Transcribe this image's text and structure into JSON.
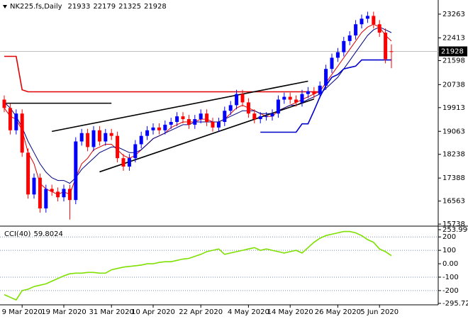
{
  "chart_data": {
    "type": "candlestick",
    "title": "NK225.fs,Daily",
    "open": [
      20200,
      19900,
      19100,
      19700,
      18300,
      16800,
      17400,
      16300,
      17000,
      16900,
      16700,
      17000,
      16600,
      18700,
      19000,
      18500,
      19100,
      18700,
      19000,
      18900,
      18100,
      17800,
      18100,
      18600,
      18900,
      19100,
      19200,
      19100,
      19300,
      19400,
      19600,
      19500,
      19300,
      19500,
      19700,
      19400,
      19200,
      19400,
      19800,
      20000,
      20400,
      20100,
      19700,
      19500,
      19600,
      19600,
      19700,
      20200,
      20300,
      20200,
      20100,
      20400,
      20500,
      20400,
      20700,
      21300,
      21700,
      21900,
      22300,
      22500,
      22900,
      23100,
      23200,
      22900,
      22600,
      21933
    ],
    "high": [
      20350,
      20050,
      19850,
      19850,
      18450,
      17550,
      17550,
      17150,
      17150,
      17050,
      17150,
      17150,
      18850,
      19150,
      19150,
      19250,
      19250,
      19150,
      19150,
      19050,
      18250,
      18250,
      18750,
      19050,
      19250,
      19350,
      19350,
      19450,
      19550,
      19750,
      19750,
      19650,
      19650,
      19850,
      19850,
      19550,
      19550,
      19950,
      20150,
      20550,
      20550,
      20250,
      19850,
      19750,
      19750,
      19850,
      20350,
      20450,
      20450,
      20350,
      20550,
      20650,
      20650,
      20850,
      21450,
      21850,
      22050,
      22450,
      22650,
      23050,
      23250,
      23350,
      23350,
      23050,
      22750,
      22179
    ],
    "low": [
      19750,
      18950,
      18950,
      18150,
      16650,
      16650,
      16150,
      16150,
      16750,
      16550,
      16550,
      15900,
      16450,
      18550,
      18350,
      18350,
      18550,
      18550,
      18750,
      17950,
      17650,
      17650,
      17950,
      18450,
      18750,
      18950,
      18950,
      18950,
      19150,
      19250,
      19350,
      19150,
      19150,
      19350,
      19250,
      19050,
      19050,
      19250,
      19650,
      19850,
      19950,
      19550,
      19350,
      19350,
      19450,
      19450,
      19550,
      20050,
      20050,
      19950,
      19950,
      20250,
      20250,
      20250,
      20550,
      21150,
      21550,
      21750,
      22150,
      22350,
      22750,
      22950,
      22750,
      22450,
      21500,
      21325
    ],
    "close": [
      19900,
      19100,
      19700,
      18300,
      16800,
      17400,
      16300,
      17000,
      16900,
      16700,
      17000,
      16600,
      18700,
      19000,
      18500,
      19100,
      18700,
      19000,
      18900,
      18100,
      17800,
      18100,
      18600,
      18900,
      19100,
      19200,
      19100,
      19300,
      19400,
      19600,
      19500,
      19300,
      19500,
      19700,
      19400,
      19200,
      19400,
      19800,
      20000,
      20400,
      20100,
      19700,
      19500,
      19600,
      19600,
      19700,
      20200,
      20300,
      20200,
      20100,
      20400,
      20500,
      20400,
      20700,
      21300,
      21700,
      21900,
      22300,
      22500,
      22900,
      23100,
      23200,
      22900,
      22600,
      21650,
      21928
    ],
    "up_color": "#0000ff",
    "down_color": "#ff0000",
    "series": [
      {
        "color": "#dd0000",
        "values": [
          19900,
          19600,
          19500,
          19100,
          18300,
          17900,
          17200,
          17000,
          16900,
          16800,
          16900,
          16800,
          17400,
          17900,
          18100,
          18400,
          18500,
          18600,
          18600,
          18400,
          18200,
          18100,
          18200,
          18400,
          18600,
          18800,
          18900,
          19000,
          19200,
          19300,
          19400,
          19400,
          19400,
          19500,
          19500,
          19400,
          19400,
          19500,
          19700,
          19900,
          20000,
          19900,
          19800,
          19700,
          19600,
          19600,
          19800,
          19900,
          20000,
          20100,
          20200,
          20300,
          20400,
          20500,
          20800,
          21100,
          21400,
          21700,
          22000,
          22300,
          22600,
          22800,
          22900,
          22800,
          22500,
          22300
        ]
      },
      {
        "color": "#000080",
        "values": [
          20100,
          19900,
          19600,
          19200,
          18700,
          18300,
          17900,
          17600,
          17400,
          17300,
          17300,
          17200,
          17400,
          17700,
          17900,
          18100,
          18300,
          18400,
          18500,
          18500,
          18400,
          18300,
          18300,
          18400,
          18600,
          18800,
          18900,
          19000,
          19100,
          19200,
          19300,
          19300,
          19400,
          19400,
          19400,
          19400,
          19400,
          19500,
          19600,
          19700,
          19800,
          19800,
          19800,
          19700,
          19700,
          19700,
          19800,
          19900,
          20000,
          20000,
          20100,
          20200,
          20300,
          20400,
          20600,
          20800,
          21000,
          21300,
          21600,
          21900,
          22200,
          22500,
          22700,
          22800,
          22700,
          22600
        ]
      },
      {
        "color": "#e00000",
        "values": [
          21750,
          21750,
          21750,
          20550,
          20480,
          20480,
          20480,
          20480,
          20480,
          20480,
          20480,
          20480,
          20480,
          20480,
          20480,
          20480,
          20480,
          20480,
          20480,
          20480,
          20480,
          20480,
          20480,
          20480,
          20480,
          20480,
          20480,
          20480,
          20480,
          20480,
          20480,
          20480,
          20480,
          20480,
          20480,
          20480,
          20480,
          20480,
          20480,
          20480,
          20480,
          20480,
          20480,
          20480,
          20480,
          20480,
          20480,
          20480,
          20480,
          20480,
          20480,
          20480,
          20480,
          20480,
          null,
          null,
          null,
          null,
          null,
          null,
          null,
          null,
          null,
          null,
          null,
          null
        ]
      },
      {
        "color": "#0000cc",
        "values": [
          null,
          null,
          null,
          null,
          null,
          null,
          null,
          null,
          null,
          null,
          null,
          null,
          null,
          null,
          null,
          null,
          null,
          null,
          null,
          null,
          null,
          null,
          null,
          null,
          null,
          null,
          null,
          null,
          null,
          null,
          null,
          null,
          null,
          null,
          null,
          null,
          null,
          null,
          null,
          null,
          null,
          null,
          null,
          19030,
          19030,
          19030,
          19030,
          19030,
          19030,
          19030,
          19330,
          19330,
          19800,
          20300,
          20700,
          21000,
          21100,
          21300,
          21350,
          21400,
          21620,
          21620,
          21620,
          21620,
          21620,
          21620
        ]
      }
    ],
    "trendlines": [
      {
        "x": [
          8,
          51
        ],
        "y": [
          19060,
          20860
        ]
      },
      {
        "x": [
          16,
          52
        ],
        "y": [
          17610,
          20220
        ]
      },
      {
        "x": [
          0,
          18
        ],
        "y": [
          20070,
          20070
        ]
      }
    ],
    "trendline_color": "#000000",
    "xticks": [
      {
        "value": 3,
        "label": "9 Mar 2020"
      },
      {
        "value": 10,
        "label": "19 Mar 2020"
      },
      {
        "value": 18,
        "label": "31 Mar 2020"
      },
      {
        "value": 25,
        "label": "10 Apr 2020"
      },
      {
        "value": 33,
        "label": "22 Apr 2020"
      },
      {
        "value": 41,
        "label": "4 May 2020"
      },
      {
        "value": 48,
        "label": "14 May 2020"
      },
      {
        "value": 56,
        "label": "26 May 2020"
      },
      {
        "value": 63,
        "label": "5 Jun 2020"
      }
    ],
    "ylim": [
      15690,
      23770
    ],
    "yticks": [
      23263,
      22413,
      21598,
      20738,
      19913,
      19063,
      18238,
      17388,
      16563,
      15738
    ],
    "indicator": {
      "type": "line",
      "title": "CCI(40)",
      "color": "#7fe000",
      "values": [
        -230,
        -250,
        -270,
        -200,
        -190,
        -170,
        -160,
        -150,
        -130,
        -110,
        -90,
        -75,
        -70,
        -70,
        -65,
        -65,
        -70,
        -70,
        -45,
        -35,
        -25,
        -20,
        -15,
        -10,
        0,
        0,
        10,
        15,
        15,
        25,
        35,
        40,
        55,
        70,
        90,
        100,
        110,
        70,
        80,
        90,
        100,
        110,
        120,
        100,
        110,
        100,
        90,
        80,
        90,
        100,
        80,
        120,
        160,
        190,
        210,
        220,
        230,
        240,
        240,
        230,
        210,
        180,
        160,
        110,
        90,
        59.8024
      ],
      "ylim": [
        -295.7234,
        253.9903
      ],
      "yticks": [
        253.9903,
        200,
        100,
        {
          "value": 0,
          "label": "0.00"
        },
        -100,
        -200,
        -295.7234
      ],
      "levels": [
        200,
        100,
        -100,
        -200
      ]
    }
  }
}
